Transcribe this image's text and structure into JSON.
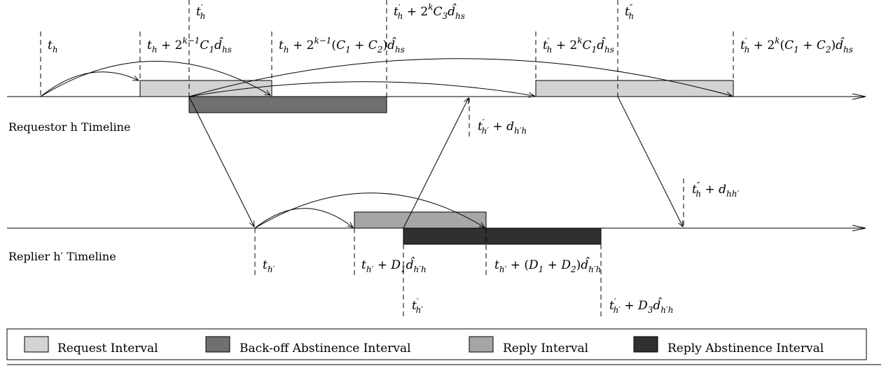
{
  "timelines": {
    "requestor": "Requestor h Timeline",
    "replier": "Replier h′ Timeline"
  },
  "labels": {
    "t_h": "t_h",
    "t_h_prime": "t′_h",
    "t_h_2k1_C1": "t_h + 2^{k−1} C_1 d̂_{hs}",
    "t_h_2k1_C1C2": "t_h + 2^{k−1}(C_1 + C_2) d̂_{hs}",
    "t_h_prime_2k_C3": "t′_h + 2^k C_3 d̂_{hs}",
    "t_h_dprime": "t″_h",
    "t_h_prime_2k_C1": "t′_h + 2^k C_1 d̂_{hs}",
    "t_h_prime_2k_C1C2": "t′_h + 2^k(C_1 + C_2) d̂_{hs}",
    "t_hp_prime_d": "t′_{h′} + d_{h′h}",
    "t_h_dprime_d": "t″_h + d_{hh′}",
    "t_hp": "t_{h′}",
    "t_hp_D1": "t_{h′} + D_1 d̂_{h′h}",
    "t_hp_D1D2": "t_{h′} + (D_1 + D_2) d̂_{h′h}",
    "t_hp_prime": "t′_{h′}",
    "t_hp_prime_D3": "t′_{h′} + D_3 d̂_{h′h}"
  },
  "legend": [
    {
      "label": "Request Interval",
      "color": "#d3d3d3"
    },
    {
      "label": "Back-off Abstinence Interval",
      "color": "#707070"
    },
    {
      "label": "Reply Interval",
      "color": "#a6a6a6"
    },
    {
      "label": "Reply Abstinence Interval",
      "color": "#303030"
    }
  ],
  "colors": {
    "request": "#d3d3d3",
    "backoff": "#707070",
    "reply": "#a6a6a6",
    "reply_abstinence": "#303030"
  }
}
